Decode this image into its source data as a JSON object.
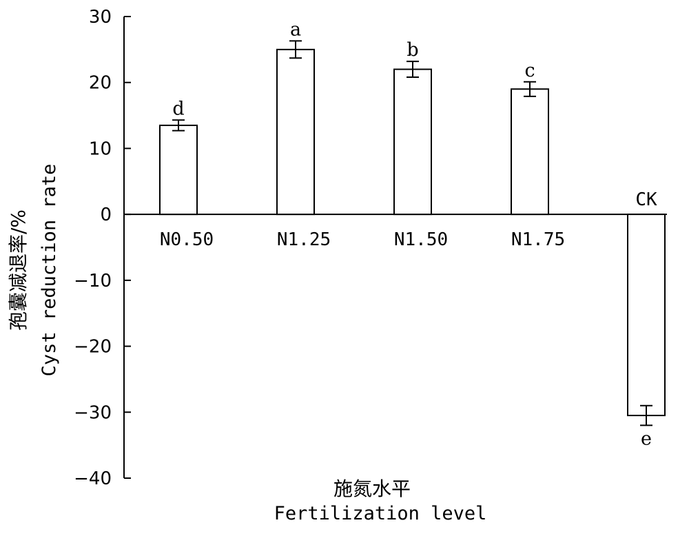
{
  "chart_data": {
    "type": "bar",
    "categories": [
      "N0.50",
      "N1.25",
      "N1.50",
      "N1.75",
      "CK"
    ],
    "values": [
      13.5,
      25.0,
      22.0,
      19.0,
      -30.5
    ],
    "errors": [
      0.8,
      1.3,
      1.2,
      1.1,
      1.5
    ],
    "significance_letters": [
      "d",
      "a",
      "b",
      "c",
      "e"
    ],
    "ylim": [
      -40,
      30
    ],
    "yticks": [
      30,
      20,
      10,
      0,
      -10,
      -20,
      -30,
      -40
    ],
    "ytick_labels": [
      "30",
      "20",
      "10",
      "0",
      "−10",
      "−20",
      "−30",
      "−40"
    ],
    "ylabel_cn": "孢囊减退率/%",
    "ylabel_en": "Cyst reduction rate",
    "xlabel_cn": "施氮水平",
    "xlabel_en": "Fertilization level",
    "grid": false,
    "bar_fill": "#ffffff",
    "bar_stroke": "#000000"
  }
}
